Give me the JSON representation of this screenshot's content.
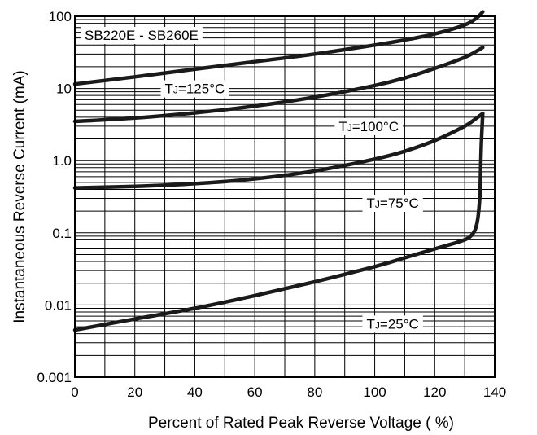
{
  "chart_data": {
    "type": "line",
    "title": "SB220E - SB260E",
    "xlabel": "Percent of Rated Peak Reverse Voltage ( %)",
    "ylabel": "Instantaneous Reverse Current (mA)",
    "xlim": [
      0,
      140
    ],
    "ylim": [
      0.001,
      100
    ],
    "yscale": "log",
    "grid": true,
    "x_ticks": [
      0,
      20,
      40,
      60,
      80,
      100,
      120,
      140
    ],
    "x_tick_labels": [
      "0",
      "20",
      "40",
      "60",
      "80",
      "100",
      "120",
      "140"
    ],
    "y_ticks": [
      0.001,
      0.01,
      0.1,
      1,
      10,
      100
    ],
    "y_tick_labels": [
      "0.001",
      "0.01",
      "0.1",
      "1.0",
      "10",
      "100"
    ],
    "series": [
      {
        "name": "TJ=125°C",
        "x": [
          0,
          20,
          40,
          60,
          80,
          100,
          110,
          120,
          130,
          134,
          136
        ],
        "y": [
          11.5,
          14.5,
          18.5,
          23.5,
          30,
          40,
          47,
          57,
          76,
          95,
          115
        ]
      },
      {
        "name": "TJ=100°C",
        "x": [
          0,
          20,
          40,
          60,
          80,
          100,
          110,
          120,
          130,
          134,
          136
        ],
        "y": [
          3.5,
          3.9,
          4.6,
          5.7,
          7.6,
          11,
          14,
          19,
          27,
          33,
          37
        ]
      },
      {
        "name": "TJ=75°C",
        "x": [
          0,
          20,
          40,
          60,
          80,
          100,
          110,
          120,
          130,
          134,
          136
        ],
        "y": [
          0.42,
          0.44,
          0.48,
          0.56,
          0.72,
          1.05,
          1.35,
          1.9,
          3.0,
          3.9,
          4.5
        ]
      },
      {
        "name": "TJ=25°C",
        "x": [
          0,
          20,
          40,
          60,
          80,
          100,
          110,
          120,
          128,
          132,
          134,
          135,
          135.5,
          136
        ],
        "y": [
          0.0045,
          0.0064,
          0.009,
          0.0135,
          0.021,
          0.034,
          0.045,
          0.06,
          0.075,
          0.09,
          0.13,
          0.3,
          1.5,
          4.5
        ]
      }
    ],
    "annotations": [
      {
        "text": "SB220E - SB260E",
        "x": 0,
        "y": 55,
        "anchor": "start"
      },
      {
        "text": "TJ=125°C",
        "x": 40,
        "y": 10,
        "anchor": "middle"
      },
      {
        "text": "TJ=100°C",
        "x": 98,
        "y": 3.0,
        "anchor": "middle"
      },
      {
        "text": "TJ=75°C",
        "x": 106,
        "y": 0.26,
        "anchor": "middle"
      },
      {
        "text": "TJ=25°C",
        "x": 106,
        "y": 0.0055,
        "anchor": "middle"
      }
    ]
  }
}
